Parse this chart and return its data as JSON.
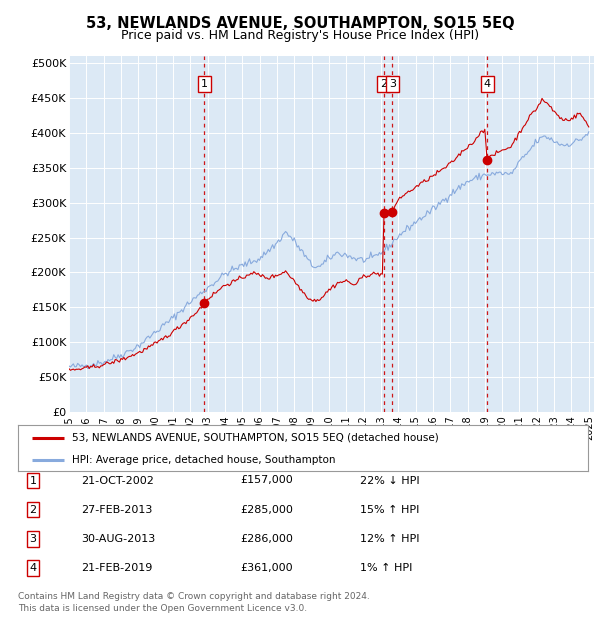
{
  "title": "53, NEWLANDS AVENUE, SOUTHAMPTON, SO15 5EQ",
  "subtitle": "Price paid vs. HM Land Registry's House Price Index (HPI)",
  "plot_bg_color": "#dce9f5",
  "hpi_color": "#88aadd",
  "price_color": "#cc0000",
  "transaction_line_color": "#cc0000",
  "transaction_box_color": "#cc0000",
  "legend_label_price": "53, NEWLANDS AVENUE, SOUTHAMPTON, SO15 5EQ (detached house)",
  "legend_label_hpi": "HPI: Average price, detached house, Southampton",
  "transactions": [
    {
      "id": 1,
      "date": "2002-10-21",
      "price": 157000,
      "label": "21-OCT-2002",
      "price_str": "£157,000",
      "note": "22% ↓ HPI"
    },
    {
      "id": 2,
      "date": "2013-02-27",
      "price": 285000,
      "label": "27-FEB-2013",
      "price_str": "£285,000",
      "note": "15% ↑ HPI"
    },
    {
      "id": 3,
      "date": "2013-08-30",
      "price": 286000,
      "label": "30-AUG-2013",
      "price_str": "£286,000",
      "note": "12% ↑ HPI"
    },
    {
      "id": 4,
      "date": "2019-02-21",
      "price": 361000,
      "label": "21-FEB-2019",
      "price_str": "£361,000",
      "note": "1% ↑ HPI"
    }
  ],
  "yticks": [
    0,
    50000,
    100000,
    150000,
    200000,
    250000,
    300000,
    350000,
    400000,
    450000,
    500000
  ],
  "ytick_labels": [
    "£0",
    "£50K",
    "£100K",
    "£150K",
    "£200K",
    "£250K",
    "£300K",
    "£350K",
    "£400K",
    "£450K",
    "£500K"
  ],
  "footer": "Contains HM Land Registry data © Crown copyright and database right 2024.\nThis data is licensed under the Open Government Licence v3.0."
}
